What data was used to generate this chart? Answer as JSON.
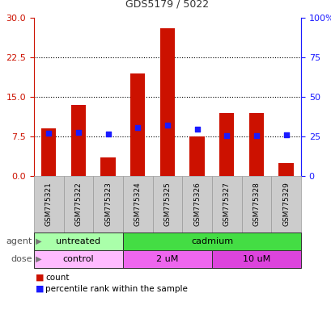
{
  "title": "GDS5179 / 5022",
  "samples": [
    "GSM775321",
    "GSM775322",
    "GSM775323",
    "GSM775324",
    "GSM775325",
    "GSM775326",
    "GSM775327",
    "GSM775328",
    "GSM775329"
  ],
  "counts": [
    9.0,
    13.5,
    3.5,
    19.5,
    28.0,
    7.5,
    12.0,
    12.0,
    2.5
  ],
  "percentile_ranks": [
    27.0,
    27.5,
    26.5,
    30.5,
    32.0,
    29.5,
    25.5,
    25.5,
    26.0
  ],
  "left_ylim": [
    0,
    30
  ],
  "right_ylim": [
    0,
    100
  ],
  "left_yticks": [
    0,
    7.5,
    15,
    22.5,
    30
  ],
  "right_yticks": [
    0,
    25,
    50,
    75,
    100
  ],
  "right_yticklabels": [
    "0",
    "25",
    "50",
    "75",
    "100%"
  ],
  "bar_color": "#cc1100",
  "marker_color": "#1a1aff",
  "bar_width": 0.5,
  "dotted_lines": [
    7.5,
    15,
    22.5
  ],
  "agent_groups": [
    {
      "label": "untreated",
      "start": 0,
      "end": 3,
      "color": "#aaffaa"
    },
    {
      "label": "cadmium",
      "start": 3,
      "end": 9,
      "color": "#44dd44"
    }
  ],
  "dose_groups": [
    {
      "label": "control",
      "start": 0,
      "end": 3,
      "color": "#ffbbff"
    },
    {
      "label": "2 uM",
      "start": 3,
      "end": 6,
      "color": "#ee66ee"
    },
    {
      "label": "10 uM",
      "start": 6,
      "end": 9,
      "color": "#dd44dd"
    }
  ],
  "legend_count_color": "#cc1100",
  "legend_marker_color": "#1a1aff",
  "bg_color": "#ffffff",
  "tick_label_color_left": "#cc1100",
  "tick_label_color_right": "#1a1aff",
  "title_color": "#333333",
  "agent_label": "agent",
  "dose_label": "dose",
  "xlabel_bg": "#cccccc",
  "xlabel_edge": "#999999"
}
